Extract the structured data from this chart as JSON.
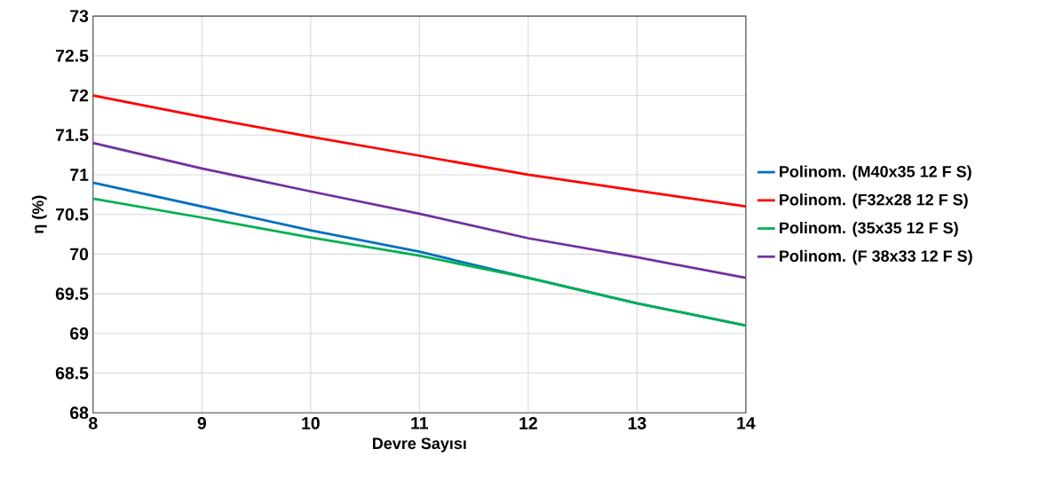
{
  "chart_data": {
    "type": "line",
    "xlabel": "Devre Sayısı",
    "ylabel": "η (%)",
    "x": [
      8,
      9,
      10,
      11,
      12,
      13,
      14
    ],
    "series": [
      {
        "name": "Polinom. (M40x35 12 F S)",
        "color": "#0070c0",
        "values": [
          70.9,
          70.6,
          70.3,
          70.03,
          69.7,
          69.38,
          69.1
        ]
      },
      {
        "name": "Polinom. (F32x28 12 F S)",
        "color": "#ff0000",
        "values": [
          72.0,
          71.73,
          71.48,
          71.24,
          71.0,
          70.8,
          70.6
        ]
      },
      {
        "name": "Polinom. (35x35 12 F S)",
        "color": "#00b050",
        "values": [
          70.7,
          70.46,
          70.21,
          69.98,
          69.7,
          69.38,
          69.1
        ]
      },
      {
        "name": "Polinom. (F 38x33 12 F S)",
        "color": "#7030a0",
        "values": [
          71.4,
          71.08,
          70.79,
          70.51,
          70.2,
          69.96,
          69.7
        ]
      }
    ],
    "xlim": [
      8,
      14
    ],
    "xticks": [
      8,
      9,
      10,
      11,
      12,
      13,
      14
    ],
    "ylim": [
      68,
      73
    ],
    "yticks": [
      68,
      68.5,
      69,
      69.5,
      70,
      70.5,
      71,
      71.5,
      72,
      72.5,
      73
    ],
    "grid": true,
    "legend": "right",
    "marker": "none",
    "line_style": "solid"
  }
}
